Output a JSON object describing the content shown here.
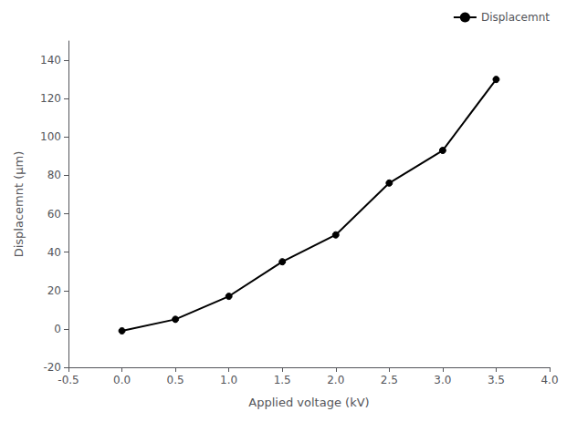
{
  "chart_data": {
    "type": "line",
    "x": [
      0.0,
      0.5,
      1.0,
      1.5,
      2.0,
      2.5,
      3.0,
      3.5
    ],
    "series": [
      {
        "name": "Displacemnt",
        "color": "black",
        "marker": "circle",
        "values": [
          -1,
          5,
          17,
          35,
          49,
          76,
          93,
          130
        ]
      }
    ],
    "xlabel": "Applied voltage (kV)",
    "ylabel": "Displacemnt (μm)",
    "xlim": [
      -0.5,
      4.0
    ],
    "ylim": [
      -20,
      150
    ],
    "xticks": [
      -0.5,
      {
        "value": 0.0,
        "label": "0.0"
      },
      0.5,
      {
        "value": 1.0,
        "label": "1.0"
      },
      1.5,
      {
        "value": 2.0,
        "label": "2.0"
      },
      2.5,
      {
        "value": 3.0,
        "label": "3.0"
      },
      3.5,
      {
        "value": 4.0,
        "label": "4.0"
      }
    ],
    "yticks": [
      -20,
      0,
      20,
      40,
      60,
      80,
      100,
      120,
      140
    ],
    "grid": false,
    "legend": "upper right"
  }
}
